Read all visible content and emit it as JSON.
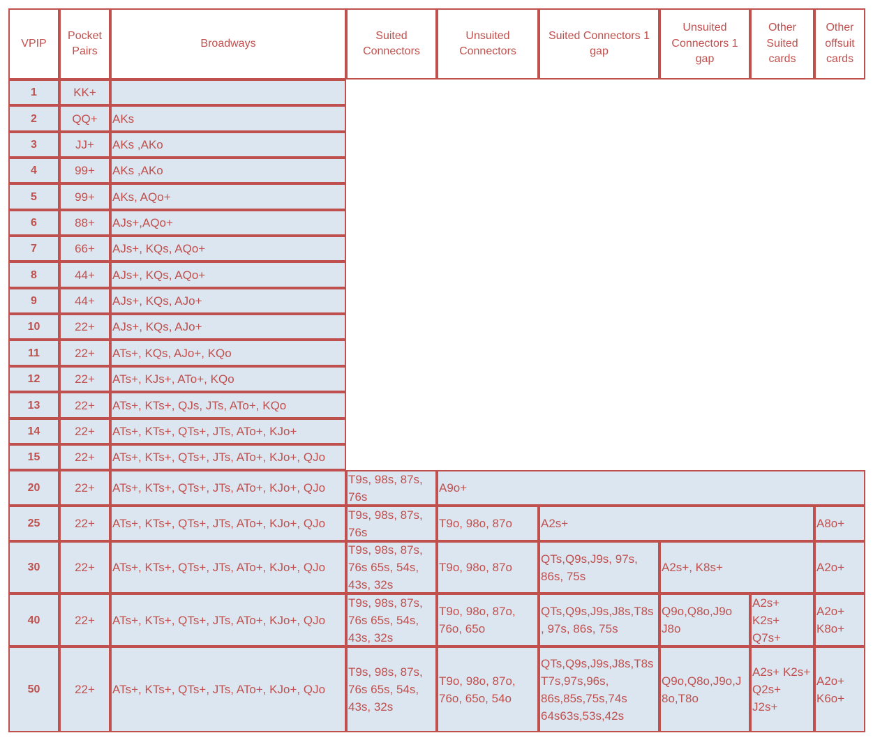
{
  "headers": [
    "VPIP",
    "Pocket\nPairs",
    "Broadways",
    "Suited\nConnectors",
    "Unsuited\nConnectors",
    "Suited Connectors 1\ngap",
    "Unsuited\nConnectors 1\ngap",
    "Other\nSuited\ncards",
    "Other\noffsuit\ncards"
  ],
  "rows": [
    {
      "vpip": "1",
      "pairs": "KK+",
      "broadways": ""
    },
    {
      "vpip": "2",
      "pairs": "QQ+",
      "broadways": "AKs"
    },
    {
      "vpip": "3",
      "pairs": "JJ+",
      "broadways": "AKs ,AKo"
    },
    {
      "vpip": "4",
      "pairs": "99+",
      "broadways": "AKs ,AKo"
    },
    {
      "vpip": "5",
      "pairs": "99+",
      "broadways": "AKs, AQo+"
    },
    {
      "vpip": "6",
      "pairs": "88+",
      "broadways": "AJs+,AQo+"
    },
    {
      "vpip": "7",
      "pairs": "66+",
      "broadways": "AJs+, KQs, AQo+"
    },
    {
      "vpip": "8",
      "pairs": "44+",
      "broadways": "AJs+, KQs, AQo+"
    },
    {
      "vpip": "9",
      "pairs": "44+",
      "broadways": "AJs+, KQs, AJo+"
    },
    {
      "vpip": "10",
      "pairs": "22+",
      "broadways": "AJs+, KQs, AJo+"
    },
    {
      "vpip": "11",
      "pairs": "22+",
      "broadways": "ATs+, KQs, AJo+, KQo"
    },
    {
      "vpip": "12",
      "pairs": "22+",
      "broadways": "ATs+, KJs+, ATo+, KQo"
    },
    {
      "vpip": "13",
      "pairs": "22+",
      "broadways": "ATs+, KTs+, QJs, JTs, ATo+, KQo"
    },
    {
      "vpip": "14",
      "pairs": "22+",
      "broadways": "ATs+, KTs+, QTs+, JTs, ATo+, KJo+"
    },
    {
      "vpip": "15",
      "pairs": "22+",
      "broadways": "ATs+, KTs+, QTs+, JTs, ATo+, KJo+, QJo"
    },
    {
      "vpip": "20",
      "pairs": "22+",
      "broadways": "ATs+, KTs+, QTs+, JTs, ATo+, KJo+, QJo",
      "suited_connectors": "T9s, 98s, 87s,\n76s",
      "rest": "A9o+"
    },
    {
      "vpip": "25",
      "pairs": "22+",
      "broadways": "ATs+, KTs+, QTs+, JTs, ATo+, KJo+, QJo",
      "suited_connectors": "T9s, 98s, 87s,\n76s",
      "unsuited_connectors": "T9o, 98o, 87o",
      "mid": "A2s+",
      "offsuit": "A8o+"
    },
    {
      "vpip": "30",
      "pairs": "22+",
      "broadways": "ATs+, KTs+, QTs+, JTs, ATo+, KJo+, QJo",
      "suited_connectors": "T9s, 98s, 87s,\n76s 65s, 54s,\n43s, 32s",
      "unsuited_connectors": "T9o, 98o, 87o",
      "sc_gap": "QTs,Q9s,J9s, 97s,\n86s, 75s",
      "mid": "A2s+, K8s+",
      "offsuit": "A2o+"
    },
    {
      "vpip": "40",
      "pairs": "22+",
      "broadways": "ATs+, KTs+, QTs+, JTs, ATo+, KJo+, QJo",
      "suited_connectors": "T9s, 98s, 87s,\n76s 65s, 54s,\n43s, 32s",
      "unsuited_connectors": "T9o, 98o, 87o,\n76o, 65o",
      "sc_gap": "QTs,Q9s,J9s,J8s,T8s\n, 97s, 86s, 75s",
      "uc_gap": "Q9o,Q8o,J9o\nJ8o",
      "other_suited": "A2s+\nK2s+\nQ7s+",
      "offsuit": "A2o+\nK8o+"
    },
    {
      "vpip": "50",
      "pairs": "22+",
      "broadways": "ATs+, KTs+, QTs+, JTs, ATo+, KJo+, QJo",
      "suited_connectors": "T9s, 98s, 87s,\n76s 65s, 54s,\n43s, 32s",
      "unsuited_connectors": "T9o, 98o, 87o,\n76o, 65o, 54o",
      "sc_gap": "QTs,Q9s,J9s,J8s,T8s\nT7s,97s,96s,\n86s,85s,75s,74s\n64s63s,53s,42s",
      "uc_gap": "Q9o,Q8o,J9o,J\n8o,T8o",
      "other_suited": "A2s+ K2s+\nQ2s+\nJ2s+",
      "offsuit": "A2o+\nK6o+"
    }
  ],
  "colors": {
    "border": "#c0504d",
    "text": "#c0504d",
    "fill": "#dce6f1",
    "header_fill": "#ffffff"
  }
}
